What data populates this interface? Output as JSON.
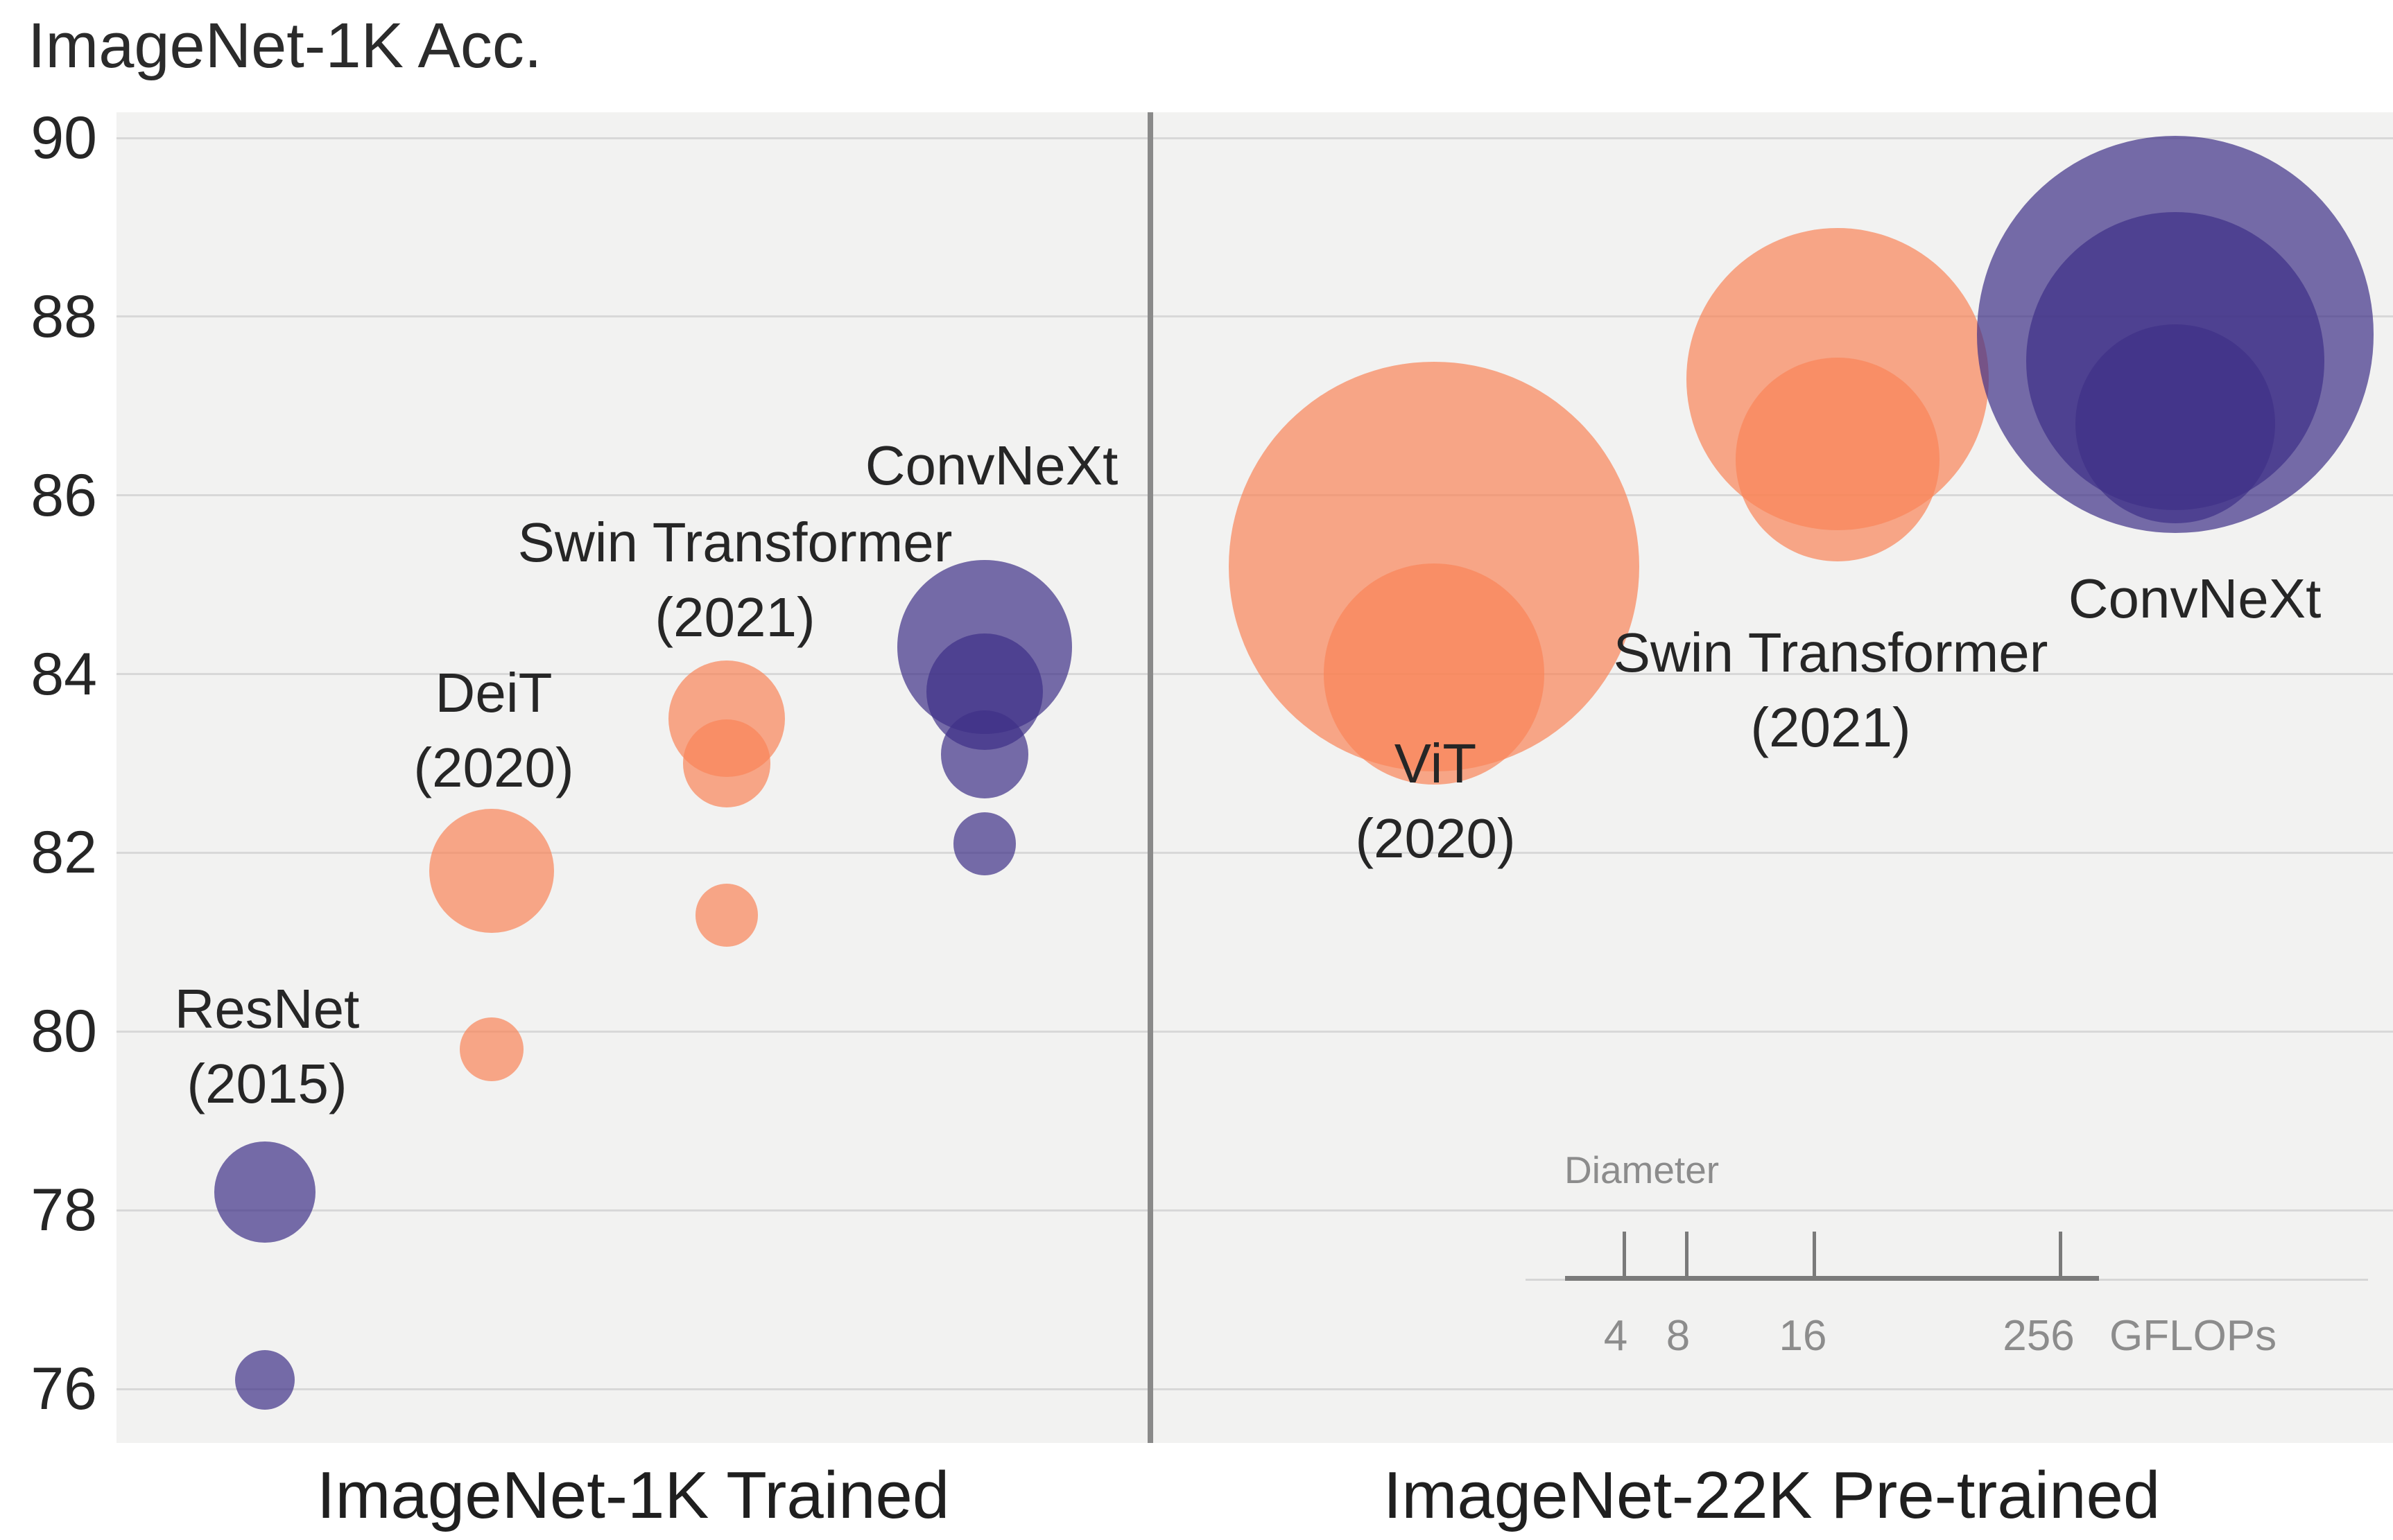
{
  "title": "ImageNet-1K Acc.",
  "panels": [
    {
      "label": "ImageNet-1K Trained"
    },
    {
      "label": "ImageNet-22K Pre-trained"
    }
  ],
  "y_axis": {
    "ticks": [
      "90",
      "88",
      "86",
      "84",
      "82",
      "80",
      "78",
      "76"
    ],
    "tick_values": [
      90,
      88,
      86,
      84,
      82,
      80,
      78,
      76
    ]
  },
  "legend": {
    "title": "Diameter",
    "ticks": [
      "4",
      "8",
      "16",
      "256"
    ],
    "unit": "GFLOPs"
  },
  "colors": {
    "purple": "#3E3088",
    "orange": "#FA8558",
    "bubble_alpha": 0.7,
    "plot_background": "#F2F2F1",
    "gridline": "#D8D8D8",
    "divider": "#8A8A8A",
    "text": "#262626",
    "legend_text": "#8C8C8C"
  },
  "chart_data": {
    "type": "scatter",
    "subtype": "bubble",
    "ylabel": "ImageNet-1K Acc.",
    "ylim": [
      75.4,
      90.3
    ],
    "grid": true,
    "size_encoding": "GFLOPs (bubble diameter)",
    "size_legend_gflops": [
      4,
      8,
      16,
      256
    ],
    "groups": [
      {
        "model": "ResNet",
        "year": "(2015)",
        "panel": 0,
        "color": "purple",
        "cx": 382,
        "label": {
          "lines": [
            "ResNet",
            "(2015)"
          ],
          "cx": 385,
          "cy_acc": 79.83
        },
        "points": [
          {
            "acc": 78.2,
            "gflops": 11.6
          },
          {
            "acc": 76.1,
            "gflops": 4.1
          }
        ]
      },
      {
        "model": "DeiT",
        "year": "(2020)",
        "panel": 0,
        "color": "orange",
        "cx": 709,
        "label": {
          "lines": [
            "DeiT",
            "(2020)"
          ],
          "cx": 712,
          "cy_acc": 83.37
        },
        "points": [
          {
            "acc": 81.8,
            "gflops": 17.5
          },
          {
            "acc": 79.8,
            "gflops": 4.6
          }
        ]
      },
      {
        "model": "Swin Transformer",
        "year": "(2021)",
        "panel": 0,
        "color": "orange",
        "cx": 1048,
        "label": {
          "lines": [
            "Swin Transformer",
            "(2021)"
          ],
          "cx": 1060,
          "cy_acc": 85.05
        },
        "points": [
          {
            "acc": 83.5,
            "gflops": 15.4
          },
          {
            "acc": 83.0,
            "gflops": 8.7
          },
          {
            "acc": 81.3,
            "gflops": 4.5
          }
        ]
      },
      {
        "model": "ConvNeXt",
        "year": "",
        "panel": 0,
        "color": "purple",
        "cx": 1420,
        "label": {
          "lines": [
            "ConvNeXt"
          ],
          "cx": 1430,
          "cy_acc": 86.33
        },
        "points": [
          {
            "acc": 84.3,
            "gflops": 34.4
          },
          {
            "acc": 83.8,
            "gflops": 15.4
          },
          {
            "acc": 83.1,
            "gflops": 8.7
          },
          {
            "acc": 82.1,
            "gflops": 4.5
          }
        ]
      },
      {
        "model": "ViT",
        "year": "(2020)",
        "panel": 1,
        "color": "orange",
        "cx": 2068,
        "label": {
          "lines": [
            "ViT",
            "(2020)"
          ],
          "cx": 2070,
          "cy_acc": 82.58
        },
        "points": [
          {
            "acc": 85.2,
            "gflops": 190.7
          },
          {
            "acc": 84.0,
            "gflops": 55.4
          }
        ]
      },
      {
        "model": "Swin Transformer",
        "year": "(2021)",
        "panel": 1,
        "color": "orange",
        "cx": 2650,
        "label": {
          "lines": [
            "Swin Transformer",
            "(2021)"
          ],
          "cx": 2640,
          "cy_acc": 83.82
        },
        "points": [
          {
            "acc": 87.3,
            "gflops": 103.9
          },
          {
            "acc": 86.4,
            "gflops": 47.0
          }
        ]
      },
      {
        "model": "ConvNeXt",
        "year": "",
        "panel": 1,
        "color": "purple",
        "cx": 3137,
        "label": {
          "lines": [
            "ConvNeXt"
          ],
          "cx": 3165,
          "cy_acc": 84.84
        },
        "points": [
          {
            "acc": 87.8,
            "gflops": 179.0
          },
          {
            "acc": 87.5,
            "gflops": 101.0
          },
          {
            "acc": 86.8,
            "gflops": 45.0
          }
        ]
      }
    ]
  }
}
